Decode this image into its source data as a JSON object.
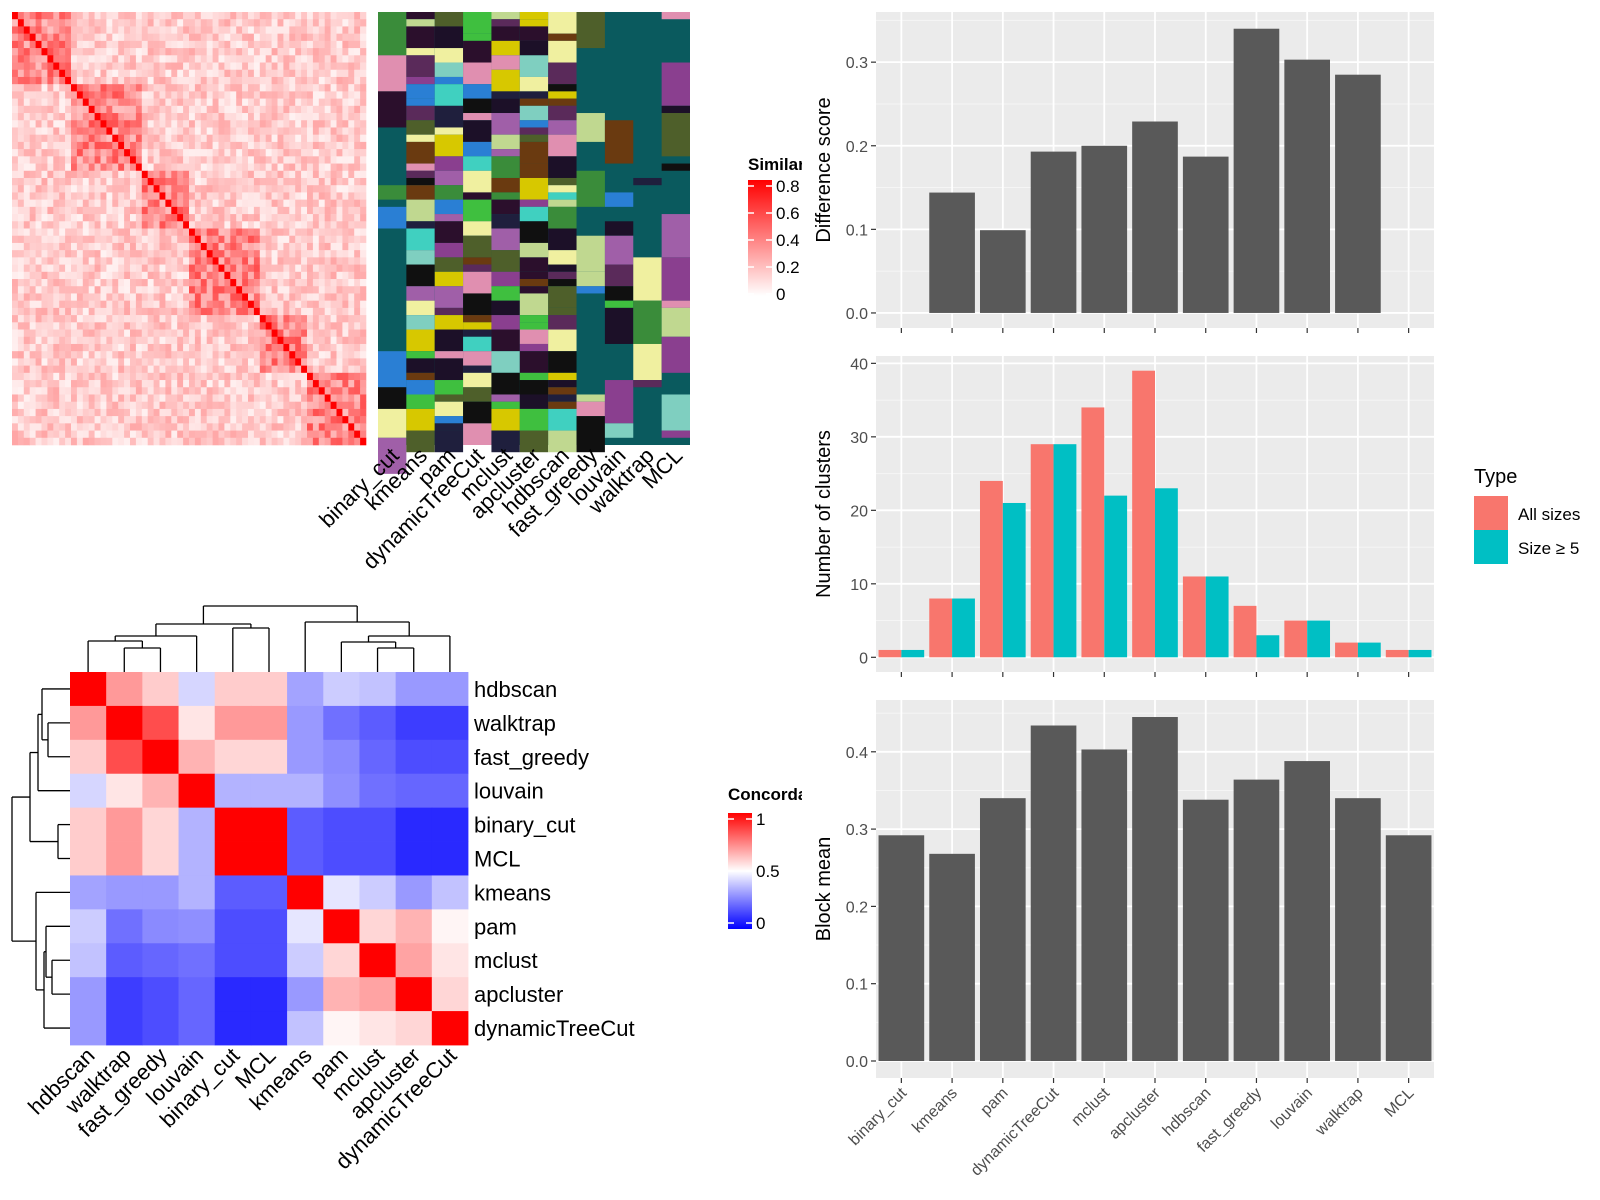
{
  "methods": [
    "binary_cut",
    "kmeans",
    "pam",
    "dynamicTreeCut",
    "mclust",
    "apcluster",
    "hdbscan",
    "fast_greedy",
    "louvain",
    "walktrap",
    "MCL"
  ],
  "similarity_legend": {
    "title": "Similarity",
    "ticks": [
      "0.8",
      "0.6",
      "0.4",
      "0.2",
      "0"
    ]
  },
  "concordance_legend": {
    "title": "Concordance",
    "ticks": [
      "1",
      "0.5",
      "0"
    ]
  },
  "type_legend": {
    "title": "Type",
    "items": [
      "All sizes",
      "Size ≥ 5"
    ],
    "colors": [
      "#F8766D",
      "#00BFC4"
    ]
  },
  "concordance_order": [
    "hdbscan",
    "walktrap",
    "fast_greedy",
    "louvain",
    "binary_cut",
    "MCL",
    "kmeans",
    "pam",
    "mclust",
    "apcluster",
    "dynamicTreeCut"
  ],
  "concordance_matrix": [
    [
      1.0,
      0.7,
      0.6,
      0.42,
      0.6,
      0.6,
      0.32,
      0.4,
      0.38,
      0.3,
      0.3
    ],
    [
      0.7,
      1.0,
      0.85,
      0.55,
      0.7,
      0.7,
      0.3,
      0.22,
      0.18,
      0.12,
      0.12
    ],
    [
      0.6,
      0.85,
      1.0,
      0.65,
      0.58,
      0.58,
      0.3,
      0.27,
      0.2,
      0.15,
      0.15
    ],
    [
      0.42,
      0.55,
      0.65,
      1.0,
      0.35,
      0.35,
      0.35,
      0.28,
      0.22,
      0.2,
      0.2
    ],
    [
      0.6,
      0.7,
      0.58,
      0.35,
      1.0,
      1.0,
      0.18,
      0.15,
      0.15,
      0.08,
      0.08
    ],
    [
      0.6,
      0.7,
      0.58,
      0.35,
      1.0,
      1.0,
      0.18,
      0.15,
      0.15,
      0.08,
      0.08
    ],
    [
      0.32,
      0.3,
      0.3,
      0.35,
      0.18,
      0.18,
      1.0,
      0.45,
      0.4,
      0.3,
      0.38
    ],
    [
      0.4,
      0.22,
      0.27,
      0.28,
      0.15,
      0.15,
      0.45,
      1.0,
      0.58,
      0.65,
      0.52
    ],
    [
      0.38,
      0.18,
      0.2,
      0.22,
      0.15,
      0.15,
      0.4,
      0.58,
      1.0,
      0.68,
      0.55
    ],
    [
      0.3,
      0.12,
      0.15,
      0.2,
      0.08,
      0.08,
      0.3,
      0.65,
      0.68,
      1.0,
      0.58
    ],
    [
      0.3,
      0.12,
      0.15,
      0.2,
      0.08,
      0.08,
      0.38,
      0.52,
      0.55,
      0.58,
      1.0
    ]
  ],
  "chart_data": [
    {
      "type": "bar",
      "categories": [
        "binary_cut",
        "kmeans",
        "pam",
        "dynamicTreeCut",
        "mclust",
        "apcluster",
        "hdbscan",
        "fast_greedy",
        "louvain",
        "walktrap",
        "MCL"
      ],
      "values": [
        0,
        0.144,
        0.099,
        0.193,
        0.2,
        0.229,
        0.187,
        0.34,
        0.303,
        0.285,
        0
      ],
      "ylabel": "Difference score",
      "ylim": [
        -0.018,
        0.36
      ],
      "yticks": [
        "0.0",
        "0.1",
        "0.2",
        "0.3"
      ],
      "grid": true
    },
    {
      "type": "bar",
      "categories": [
        "binary_cut",
        "kmeans",
        "pam",
        "dynamicTreeCut",
        "mclust",
        "apcluster",
        "hdbscan",
        "fast_greedy",
        "louvain",
        "walktrap",
        "MCL"
      ],
      "series": [
        {
          "name": "All sizes",
          "values": [
            1,
            8,
            24,
            29,
            34,
            39,
            11,
            7,
            5,
            2,
            1
          ]
        },
        {
          "name": "Size ≥ 5",
          "values": [
            1,
            8,
            21,
            29,
            22,
            23,
            11,
            3,
            5,
            2,
            1
          ]
        }
      ],
      "ylabel": "Number of clusters",
      "ylim": [
        -2,
        41
      ],
      "yticks": [
        "0",
        "10",
        "20",
        "30",
        "40"
      ],
      "legend": "right",
      "grid": true
    },
    {
      "type": "bar",
      "categories": [
        "binary_cut",
        "kmeans",
        "pam",
        "dynamicTreeCut",
        "mclust",
        "apcluster",
        "hdbscan",
        "fast_greedy",
        "louvain",
        "walktrap",
        "MCL"
      ],
      "values": [
        0.292,
        0.268,
        0.34,
        0.434,
        0.403,
        0.445,
        0.338,
        0.364,
        0.388,
        0.34,
        0.292
      ],
      "ylabel": "Block mean",
      "ylim": [
        -0.022,
        0.467
      ],
      "yticks": [
        "0.0",
        "0.1",
        "0.2",
        "0.3",
        "0.4"
      ],
      "grid": true
    }
  ]
}
